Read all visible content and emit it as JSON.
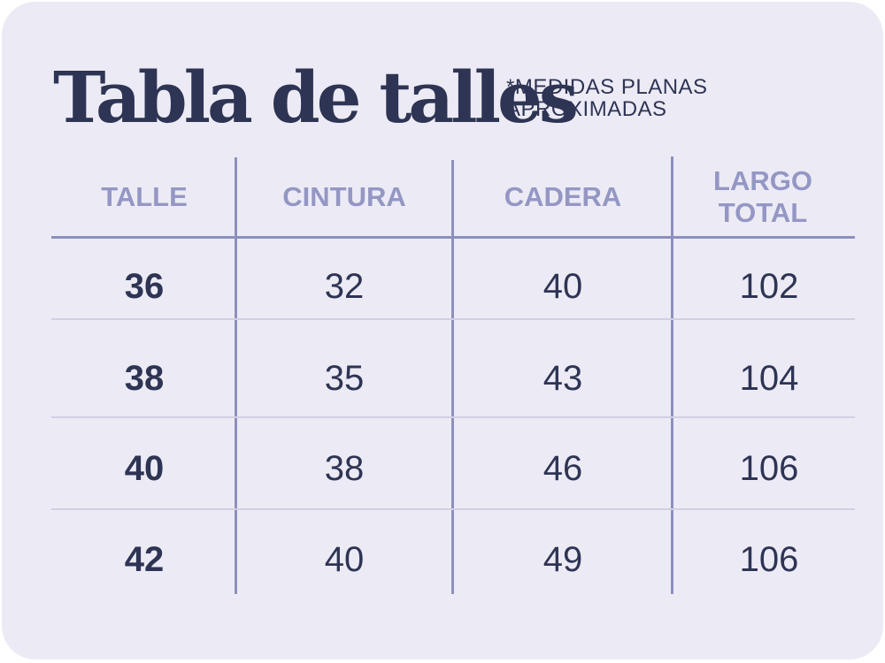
{
  "title": "Tabla de talles",
  "note": {
    "line1": "*MEDIDAS PLANAS",
    "line2": "APROXIMADAS"
  },
  "table": {
    "headers": {
      "talle": "TALLE",
      "cintura": "CINTURA",
      "cadera": "CADERA",
      "largo_line1": "LARGO",
      "largo_line2": "TOTAL"
    },
    "rows": [
      {
        "talle": "36",
        "cintura": "32",
        "cadera": "40",
        "largo": "102"
      },
      {
        "talle": "38",
        "cintura": "35",
        "cadera": "43",
        "largo": "104"
      },
      {
        "talle": "40",
        "cintura": "38",
        "cadera": "46",
        "largo": "106"
      },
      {
        "talle": "42",
        "cintura": "40",
        "cadera": "49",
        "largo": "106"
      }
    ]
  },
  "colors": {
    "background": "#ecebf5",
    "text_dark": "#2e3454",
    "header_text": "#9497c4",
    "grid_line": "#8d90bd",
    "row_divider": "#d0cfe3"
  }
}
